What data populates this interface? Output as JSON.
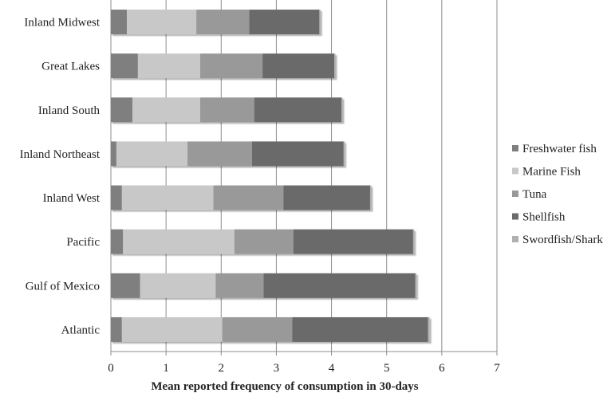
{
  "chart_data": {
    "type": "bar",
    "orientation": "horizontal",
    "stacked": true,
    "title": "",
    "xlabel": "Mean reported frequency of consumption in 30-days",
    "ylabel": "",
    "xlim": [
      0,
      7
    ],
    "xticks": [
      "0",
      "1",
      "2",
      "3",
      "4",
      "5",
      "6",
      "7"
    ],
    "grid": "vertical",
    "legend_position": "right",
    "categories": [
      "Inland Midwest",
      "Great Lakes",
      "Inland South",
      "Inland Northeast",
      "Inland West",
      "Pacific",
      "Gulf of Mexico",
      "Atlantic"
    ],
    "series": [
      {
        "name": "Freshwater fish",
        "color": "#7f7f7f",
        "values": [
          0.29,
          0.49,
          0.39,
          0.1,
          0.2,
          0.22,
          0.53,
          0.2
        ]
      },
      {
        "name": "Marine Fish",
        "color": "#c8c8c8",
        "values": [
          1.26,
          1.13,
          1.23,
          1.29,
          1.66,
          2.02,
          1.37,
          1.82
        ]
      },
      {
        "name": "Tuna",
        "color": "#999999",
        "values": [
          0.96,
          1.13,
          0.98,
          1.17,
          1.27,
          1.07,
          0.87,
          1.27
        ]
      },
      {
        "name": "Shellfish",
        "color": "#6b6b6b",
        "values": [
          1.27,
          1.3,
          1.58,
          1.66,
          1.57,
          2.17,
          2.75,
          2.46
        ]
      },
      {
        "name": "Swordfish/Shark",
        "color": "#b0b0b0",
        "values": [
          0.02,
          0.02,
          0.02,
          0.02,
          0.02,
          0.02,
          0.02,
          0.03
        ]
      }
    ]
  }
}
